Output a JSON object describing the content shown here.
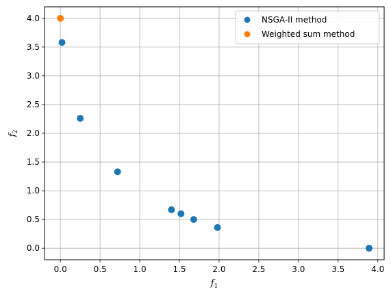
{
  "chart_data": {
    "type": "scatter",
    "xlabel": "f1",
    "ylabel": "f2",
    "xlabel_main": "f",
    "xlabel_sub": "1",
    "ylabel_main": "f",
    "ylabel_sub": "2",
    "xlim": [
      -0.2,
      4.08
    ],
    "ylim": [
      -0.2,
      4.2
    ],
    "xticks": [
      "0.0",
      "0.5",
      "1.0",
      "1.5",
      "2.0",
      "2.5",
      "3.0",
      "3.5",
      "4.0"
    ],
    "yticks": [
      "0.0",
      "0.5",
      "1.0",
      "1.5",
      "2.0",
      "2.5",
      "3.0",
      "3.5",
      "4.0"
    ],
    "grid": true,
    "legend_position": "top-right",
    "series": [
      {
        "name": "NSGA-II method",
        "color": "#1f77b4",
        "points": [
          {
            "x": 0.02,
            "y": 3.58
          },
          {
            "x": 0.25,
            "y": 2.26
          },
          {
            "x": 0.72,
            "y": 1.33
          },
          {
            "x": 1.4,
            "y": 0.67
          },
          {
            "x": 1.52,
            "y": 0.6
          },
          {
            "x": 1.68,
            "y": 0.5
          },
          {
            "x": 1.98,
            "y": 0.36
          },
          {
            "x": 3.89,
            "y": 0.0
          }
        ]
      },
      {
        "name": "Weighted sum method",
        "color": "#ff7f0e",
        "points": [
          {
            "x": 0.0,
            "y": 4.0
          }
        ]
      }
    ]
  }
}
